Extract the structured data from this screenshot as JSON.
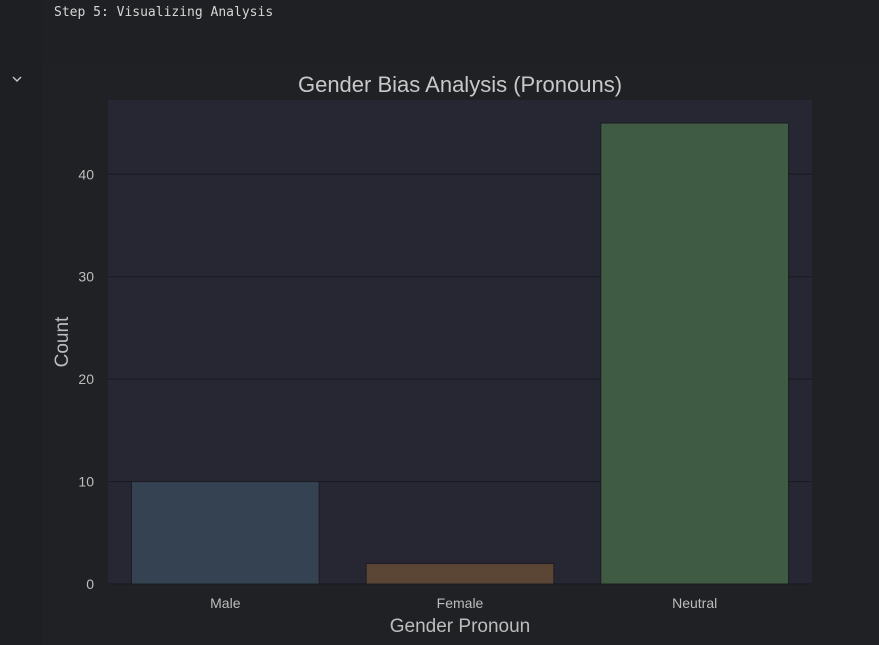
{
  "cell": {
    "output_text": "Step 5: Visualizing Analysis"
  },
  "icons": {
    "collapse": "chevron-down-icon"
  },
  "colors": {
    "page_bg": "#1f2023",
    "plot_bg": "#262733",
    "grid": "#1a1b22",
    "text": "#bdbdbd",
    "title": "#c8c8c8"
  },
  "chart_data": {
    "type": "bar",
    "title": "Gender Bias Analysis (Pronouns)",
    "xlabel": "Gender Pronoun",
    "ylabel": "Count",
    "categories": [
      "Male",
      "Female",
      "Neutral"
    ],
    "values": [
      10,
      2,
      45
    ],
    "colors": [
      "#344252",
      "#5b4534",
      "#3f5b43"
    ],
    "ylim": [
      0,
      47.25
    ],
    "yticks": [
      0,
      10,
      20,
      30,
      40
    ],
    "grid": true
  }
}
